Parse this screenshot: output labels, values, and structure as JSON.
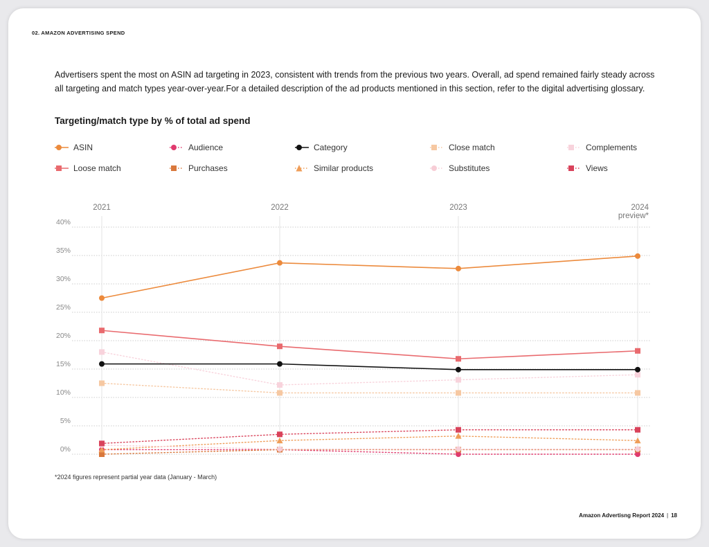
{
  "header": {
    "section": "02. AMAZON ADVERTISING SPEND"
  },
  "intro": "Advertisers spent the most on ASIN ad targeting in 2023, consistent with trends from the previous two years. Overall, ad spend remained fairly steady across all targeting and match types year-over-year.For a detailed description of the ad products mentioned in this section, refer to the digital advertising glossary.",
  "footnote": "*2024 figures represent partial year data (January - March)",
  "footer": {
    "report": "Amazon Advertisng Report 2024",
    "separator": "|",
    "page": "18"
  },
  "chart_data": {
    "type": "line",
    "title": "Targeting/match type by % of total ad spend",
    "xlabel": "",
    "ylabel": "",
    "x": [
      "2021",
      "2022",
      "2023",
      "2024"
    ],
    "x_sublabels": [
      "",
      "",
      "",
      "preview*"
    ],
    "y_ticks": [
      "0%",
      "5%",
      "10%",
      "15%",
      "20%",
      "25%",
      "30%",
      "35%",
      "40%"
    ],
    "ylim": [
      0,
      40
    ],
    "grid": true,
    "legend_position": "top",
    "series": [
      {
        "name": "ASIN",
        "values": [
          27.5,
          33.7,
          32.7,
          34.9
        ],
        "color": "#ec8a3c",
        "marker": "circle",
        "line": "solid"
      },
      {
        "name": "Audience",
        "values": [
          0.8,
          0.8,
          0.0,
          0.0
        ],
        "color": "#e03a6e",
        "marker": "circle",
        "line": "dotted"
      },
      {
        "name": "Category",
        "values": [
          15.9,
          15.9,
          14.9,
          14.9
        ],
        "color": "#111111",
        "marker": "circle",
        "line": "solid"
      },
      {
        "name": "Close match",
        "values": [
          12.5,
          10.8,
          10.8,
          10.8
        ],
        "color": "#f6c8a2",
        "marker": "square",
        "line": "dotted"
      },
      {
        "name": "Complements",
        "values": [
          18.0,
          12.2,
          13.1,
          14.0
        ],
        "color": "#f8d3dc",
        "marker": "square",
        "line": "dotted"
      },
      {
        "name": "Loose match",
        "values": [
          21.8,
          19.0,
          16.8,
          18.2
        ],
        "color": "#e96a6e",
        "marker": "square",
        "line": "solid"
      },
      {
        "name": "Purchases",
        "values": [
          0.0,
          0.8,
          0.8,
          0.8
        ],
        "color": "#d9783c",
        "marker": "square",
        "line": "dotted"
      },
      {
        "name": "Similar products",
        "values": [
          0.8,
          2.4,
          3.2,
          2.4
        ],
        "color": "#ef9d58",
        "marker": "triangle",
        "line": "dotted"
      },
      {
        "name": "Substitutes",
        "values": [
          1.6,
          0.9,
          0.9,
          0.9
        ],
        "color": "#f7cdd6",
        "marker": "circle",
        "line": "dotted"
      },
      {
        "name": "Views",
        "values": [
          1.9,
          3.5,
          4.3,
          4.3
        ],
        "color": "#d9435b",
        "marker": "square",
        "line": "dotted"
      }
    ]
  }
}
